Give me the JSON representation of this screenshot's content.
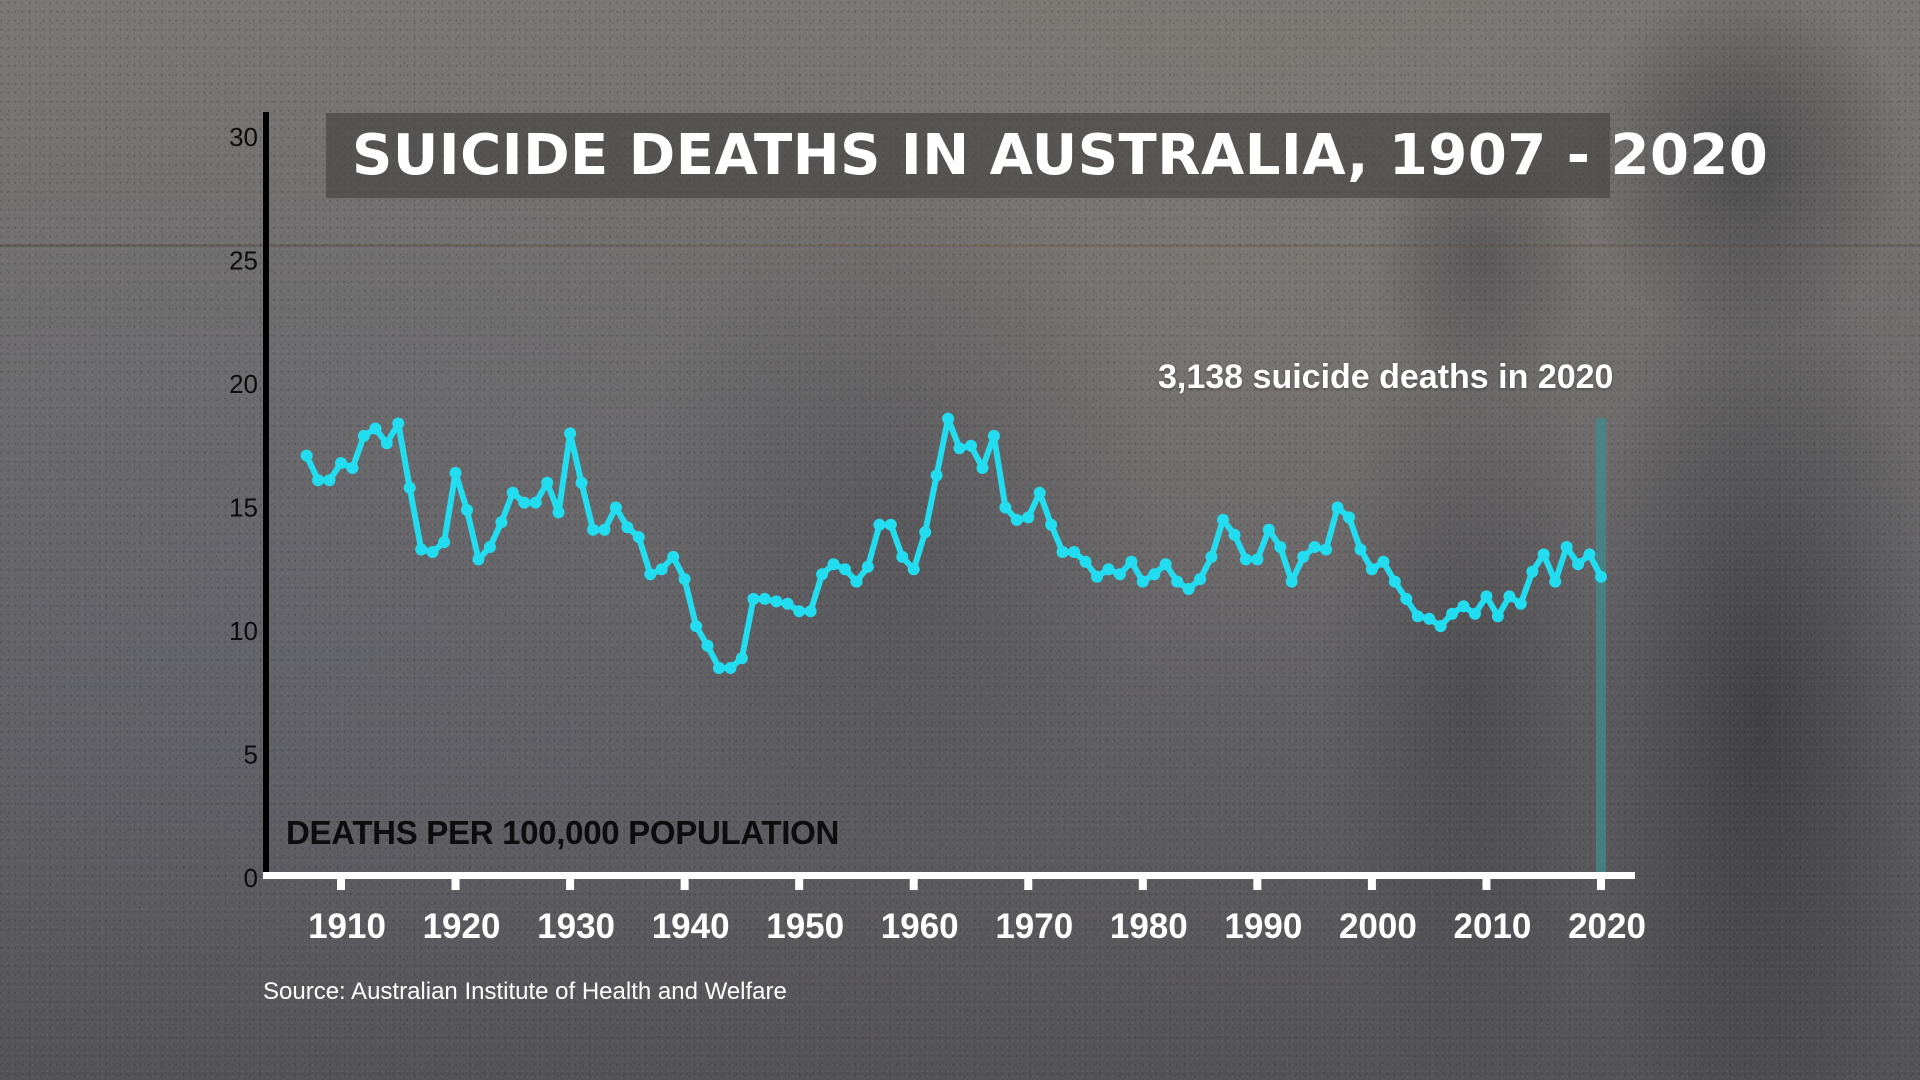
{
  "title": "SUICIDE DEATHS IN AUSTRALIA, 1907 - 2020",
  "annotation": "3,138 suicide deaths in 2020",
  "y_axis_label": "DEATHS PER 100,000 POPULATION",
  "source": "Source: Australian Institute of Health and Welfare",
  "colors": {
    "line": "#22dcef",
    "marker_bar": "#3f8c8e",
    "y_axis": "#000000",
    "x_axis": "#ffffff",
    "title_text": "#ffffff",
    "title_box": "#3c3a39"
  },
  "chart_data": {
    "type": "line",
    "title": "SUICIDE DEATHS IN AUSTRALIA, 1907 - 2020",
    "xlabel": "",
    "ylabel": "DEATHS PER 100,000 POPULATION",
    "ylim": [
      0,
      30
    ],
    "xlim": [
      1907,
      2020
    ],
    "yticks": [
      0,
      5,
      10,
      15,
      20,
      25,
      30
    ],
    "xticks": [
      1910,
      1920,
      1930,
      1940,
      1950,
      1960,
      1970,
      1980,
      1990,
      2000,
      2010,
      2020
    ],
    "grid": false,
    "legend": "none",
    "annotations": [
      {
        "text": "3,138 suicide deaths in 2020",
        "x": 2020,
        "type": "vertical-marker"
      }
    ],
    "series": [
      {
        "name": "Suicide deaths per 100,000 population",
        "x": [
          1907,
          1908,
          1909,
          1910,
          1911,
          1912,
          1913,
          1914,
          1915,
          1916,
          1917,
          1918,
          1919,
          1920,
          1921,
          1922,
          1923,
          1924,
          1925,
          1926,
          1927,
          1928,
          1929,
          1930,
          1931,
          1932,
          1933,
          1934,
          1935,
          1936,
          1937,
          1938,
          1939,
          1940,
          1941,
          1942,
          1943,
          1944,
          1945,
          1946,
          1947,
          1948,
          1949,
          1950,
          1951,
          1952,
          1953,
          1954,
          1955,
          1956,
          1957,
          1958,
          1959,
          1960,
          1961,
          1962,
          1963,
          1964,
          1965,
          1966,
          1967,
          1968,
          1969,
          1970,
          1971,
          1972,
          1973,
          1974,
          1975,
          1976,
          1977,
          1978,
          1979,
          1980,
          1981,
          1982,
          1983,
          1984,
          1985,
          1986,
          1987,
          1988,
          1989,
          1990,
          1991,
          1992,
          1993,
          1994,
          1995,
          1996,
          1997,
          1998,
          1999,
          2000,
          2001,
          2002,
          2003,
          2004,
          2005,
          2006,
          2007,
          2008,
          2009,
          2010,
          2011,
          2012,
          2013,
          2014,
          2015,
          2016,
          2017,
          2018,
          2019,
          2020
        ],
        "values": [
          17.1,
          16.1,
          16.1,
          16.8,
          16.6,
          17.9,
          18.2,
          17.6,
          18.4,
          15.8,
          13.3,
          13.2,
          13.6,
          16.4,
          14.9,
          12.9,
          13.4,
          14.4,
          15.6,
          15.2,
          15.2,
          16.0,
          14.8,
          18.0,
          16.0,
          14.1,
          14.1,
          15.0,
          14.2,
          13.8,
          12.3,
          12.5,
          13.0,
          12.1,
          10.2,
          9.4,
          8.5,
          8.5,
          8.9,
          11.3,
          11.3,
          11.2,
          11.1,
          10.8,
          10.8,
          12.3,
          12.7,
          12.5,
          12.0,
          12.6,
          14.3,
          14.3,
          13.0,
          12.5,
          14.0,
          16.3,
          18.6,
          17.4,
          17.5,
          16.6,
          17.9,
          15.0,
          14.5,
          14.6,
          15.6,
          14.3,
          13.2,
          13.2,
          12.8,
          12.2,
          12.5,
          12.3,
          12.8,
          12.0,
          12.3,
          12.7,
          12.0,
          11.7,
          12.1,
          13.0,
          14.5,
          13.9,
          12.9,
          12.9,
          14.1,
          13.4,
          12.0,
          13.0,
          13.4,
          13.3,
          15.0,
          14.6,
          13.3,
          12.5,
          12.8,
          12.0,
          11.3,
          10.6,
          10.5,
          10.2,
          10.7,
          11.0,
          10.7,
          11.4,
          10.6,
          11.4,
          11.1,
          12.4,
          13.1,
          12.0,
          13.4,
          12.7,
          13.1,
          12.2
        ]
      }
    ]
  }
}
